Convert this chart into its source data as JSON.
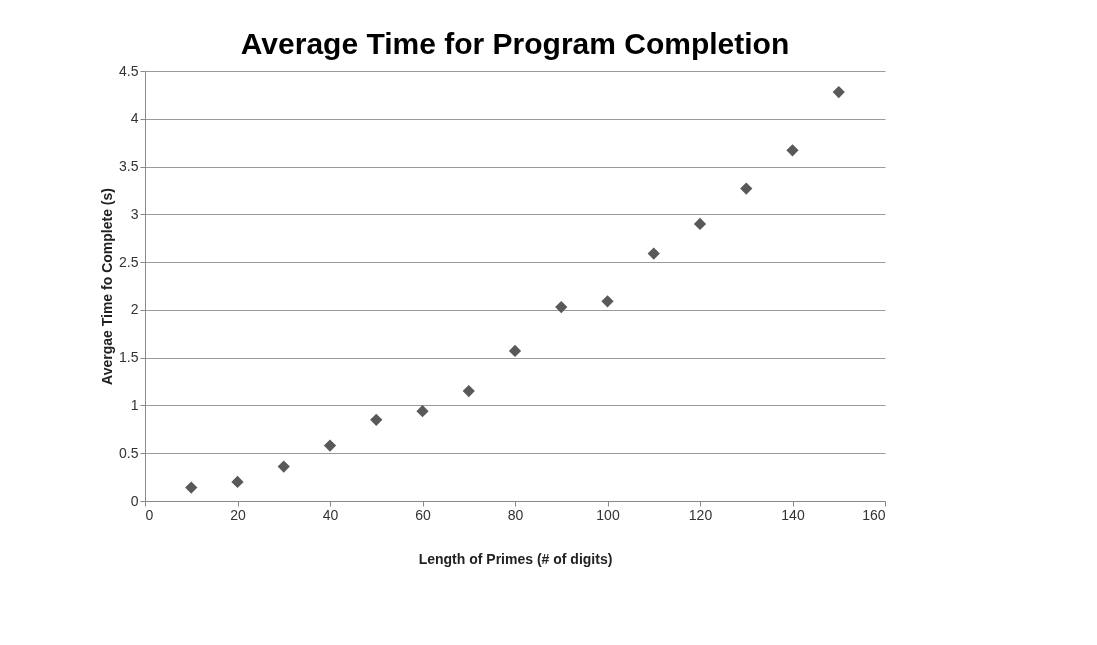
{
  "chart_data": {
    "type": "scatter",
    "title": "Average Time for Program Completion",
    "xlabel": "Length of Primes (# of digits)",
    "ylabel": "Avergae Time fo Complete (s)",
    "x": [
      10,
      20,
      30,
      40,
      50,
      60,
      70,
      80,
      90,
      100,
      110,
      120,
      130,
      140,
      150
    ],
    "series": [
      {
        "color": "#595959",
        "values": [
          0.14,
          0.2,
          0.36,
          0.58,
          0.85,
          0.94,
          1.15,
          1.57,
          2.03,
          2.09,
          2.59,
          2.9,
          3.27,
          3.67,
          4.28
        ]
      }
    ],
    "xlim": [
      0,
      160
    ],
    "xticks": [
      0,
      20,
      40,
      60,
      80,
      100,
      120,
      140,
      160
    ],
    "ylim": [
      0,
      4.5
    ],
    "yticks": [
      0,
      0.5,
      1,
      1.5,
      2,
      2.5,
      3,
      3.5,
      4,
      4.5
    ],
    "grid": "y",
    "marker": "diamond"
  }
}
